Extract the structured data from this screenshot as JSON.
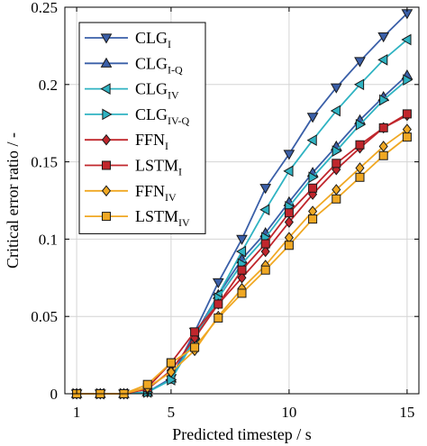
{
  "chart_data": {
    "type": "line",
    "xlabel": "Predicted timestep / s",
    "ylabel": "Critical error ratio / -",
    "xlim": [
      0.5,
      15.5
    ],
    "ylim": [
      0,
      0.25
    ],
    "xticks": [
      1,
      5,
      10,
      15
    ],
    "xtick_labels": [
      "1",
      "5",
      "10",
      "15"
    ],
    "yticks": [
      0,
      0.05,
      0.1,
      0.15,
      0.2,
      0.25
    ],
    "ytick_labels": [
      "0",
      "0.05",
      "0.1",
      "0.15",
      "0.2",
      "0.25"
    ],
    "grid": true,
    "legend_position": "top-left",
    "x": [
      1,
      2,
      3,
      4,
      5,
      6,
      7,
      8,
      9,
      10,
      11,
      12,
      13,
      14,
      15
    ],
    "series": [
      {
        "name": "CLG",
        "subscript": "I",
        "color": "#3a5fa8",
        "marker": "triangle-down",
        "values": [
          0,
          0,
          0,
          0.001,
          0.01,
          0.04,
          0.072,
          0.1,
          0.133,
          0.155,
          0.179,
          0.198,
          0.215,
          0.231,
          0.246
        ]
      },
      {
        "name": "CLG",
        "subscript": "I-Q",
        "color": "#3a5fa8",
        "marker": "triangle-up",
        "values": [
          0,
          0,
          0,
          0.001,
          0.01,
          0.038,
          0.064,
          0.087,
          0.104,
          0.124,
          0.143,
          0.16,
          0.177,
          0.192,
          0.206
        ]
      },
      {
        "name": "CLG",
        "subscript": "IV",
        "color": "#2fb3c2",
        "marker": "triangle-left",
        "values": [
          0,
          0,
          0,
          0.001,
          0.009,
          0.036,
          0.064,
          0.092,
          0.119,
          0.144,
          0.164,
          0.183,
          0.2,
          0.216,
          0.229
        ]
      },
      {
        "name": "CLG",
        "subscript": "IV-Q",
        "color": "#2fb3c2",
        "marker": "triangle-right",
        "values": [
          0,
          0,
          0,
          0.001,
          0.009,
          0.035,
          0.062,
          0.084,
          0.101,
          0.121,
          0.14,
          0.157,
          0.174,
          0.19,
          0.203
        ]
      },
      {
        "name": "FFN",
        "subscript": "I",
        "color": "#c0262c",
        "marker": "diamond",
        "values": [
          0,
          0,
          0,
          0.003,
          0.015,
          0.036,
          0.058,
          0.075,
          0.092,
          0.111,
          0.129,
          0.145,
          0.159,
          0.172,
          0.18
        ]
      },
      {
        "name": "LSTM",
        "subscript": "I",
        "color": "#c0262c",
        "marker": "square",
        "values": [
          0,
          0,
          0,
          0.004,
          0.02,
          0.04,
          0.058,
          0.08,
          0.097,
          0.117,
          0.133,
          0.149,
          0.161,
          0.172,
          0.181
        ]
      },
      {
        "name": "FFN",
        "subscript": "IV",
        "color": "#f0a823",
        "marker": "diamond",
        "values": [
          0,
          0,
          0,
          0.004,
          0.014,
          0.028,
          0.05,
          0.068,
          0.083,
          0.101,
          0.118,
          0.132,
          0.146,
          0.16,
          0.171
        ]
      },
      {
        "name": "LSTM",
        "subscript": "IV",
        "color": "#f0a823",
        "marker": "square",
        "values": [
          0,
          0,
          0,
          0.006,
          0.02,
          0.03,
          0.049,
          0.065,
          0.08,
          0.096,
          0.113,
          0.126,
          0.14,
          0.154,
          0.166
        ]
      }
    ]
  }
}
